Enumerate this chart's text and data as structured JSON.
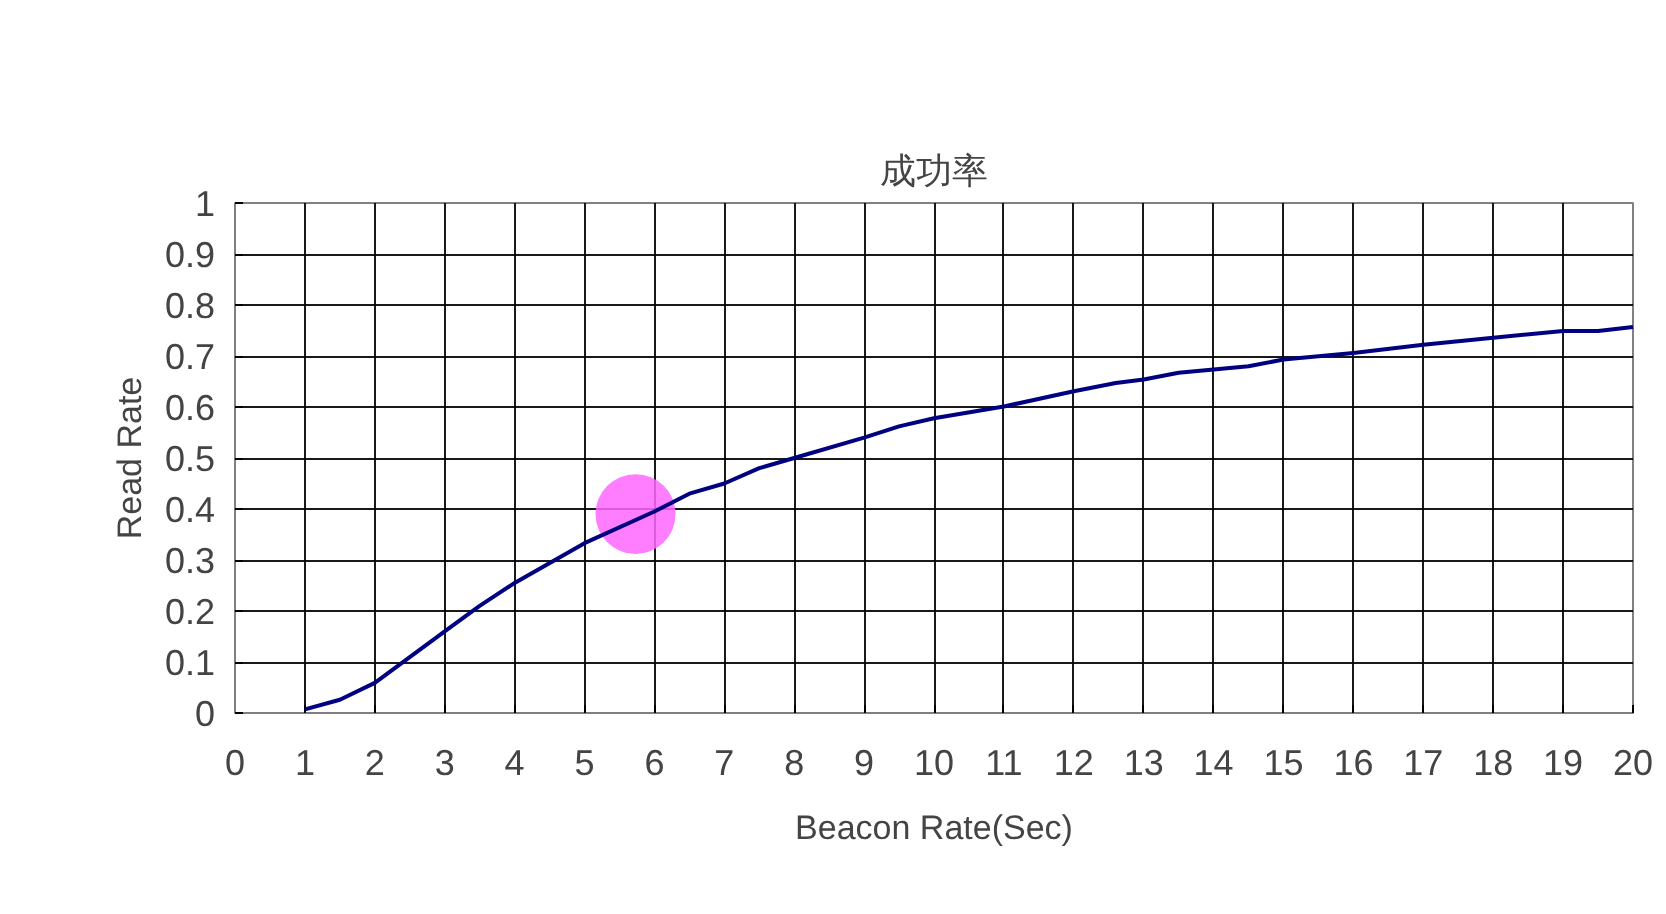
{
  "chart_data": {
    "type": "line",
    "title": "成功率",
    "xlabel": "Beacon Rate(Sec)",
    "ylabel": "Read Rate",
    "xlim": [
      0,
      20
    ],
    "ylim": [
      0,
      1
    ],
    "xticks": [
      0,
      1,
      2,
      3,
      4,
      5,
      6,
      7,
      8,
      9,
      10,
      11,
      12,
      13,
      14,
      15,
      16,
      17,
      18,
      19,
      20
    ],
    "yticks": [
      0,
      0.1,
      0.2,
      0.3,
      0.4,
      0.5,
      0.6,
      0.7,
      0.8,
      0.9,
      1
    ],
    "grid": true,
    "marker": "none",
    "line_style": "solid",
    "series": [
      {
        "color": "#000080",
        "x": [
          1,
          1.5,
          2,
          3,
          3.5,
          4,
          5,
          6,
          6.5,
          7,
          7.5,
          8,
          9,
          9.5,
          10,
          11,
          12,
          12.6,
          13,
          13.5,
          14.5,
          15,
          16,
          17,
          18,
          19,
          19.5,
          20
        ],
        "values": [
          0.007,
          0.026,
          0.059,
          0.16,
          0.21,
          0.255,
          0.333,
          0.395,
          0.43,
          0.45,
          0.48,
          0.5,
          0.54,
          0.562,
          0.578,
          0.601,
          0.631,
          0.647,
          0.654,
          0.667,
          0.68,
          0.693,
          0.706,
          0.722,
          0.736,
          0.749,
          0.749,
          0.757
        ]
      },
      {
        "type": "scatter",
        "marker": "circle",
        "color": "#ff66ff",
        "x": [
          5.73
        ],
        "values": [
          0.39
        ]
      }
    ]
  }
}
